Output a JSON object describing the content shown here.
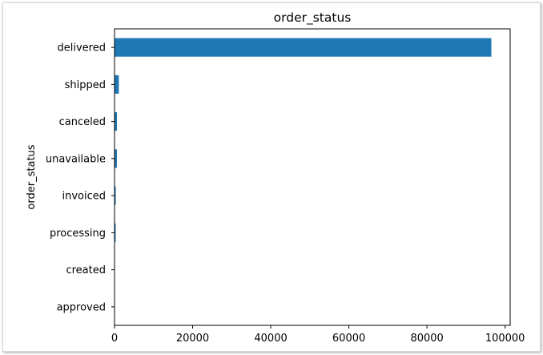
{
  "chart_data": {
    "type": "bar",
    "orientation": "horizontal",
    "title": "order_status",
    "xlabel": "",
    "ylabel": "order_status",
    "categories": [
      "delivered",
      "shipped",
      "canceled",
      "unavailable",
      "invoiced",
      "processing",
      "created",
      "approved"
    ],
    "values": [
      96478,
      1107,
      625,
      609,
      314,
      301,
      5,
      2
    ],
    "xlim": [
      0,
      101300
    ],
    "xticks": [
      0,
      20000,
      40000,
      60000,
      80000,
      100000
    ],
    "xtick_labels": [
      "0",
      "20000",
      "40000",
      "60000",
      "80000",
      "100000"
    ],
    "bar_color": "#1f77b4",
    "grid": false,
    "legend": "none"
  }
}
